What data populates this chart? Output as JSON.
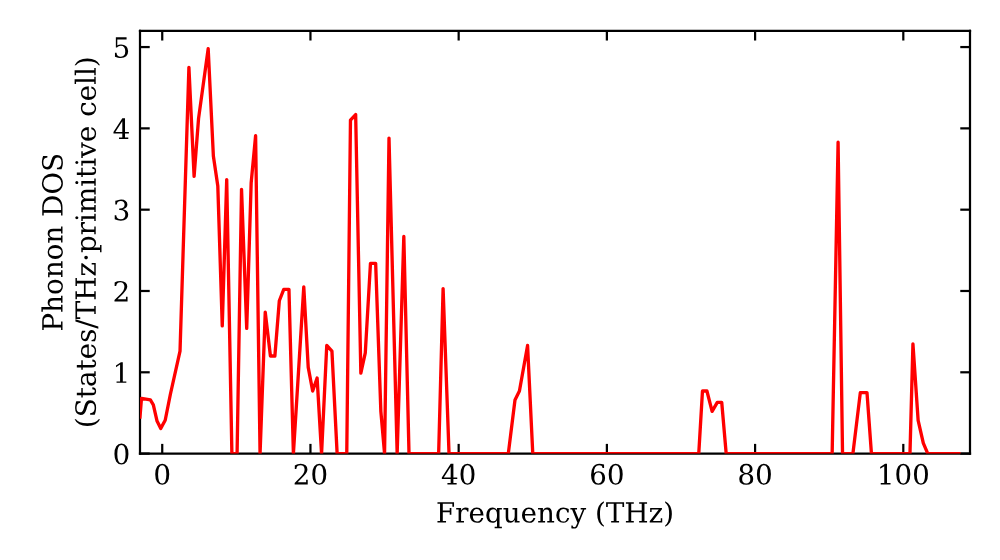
{
  "chart_data": {
    "type": "line",
    "xlabel": "Frequency (THz)",
    "ylabel": "Phonon DOS\n(States/THz·primitive cell)",
    "xlim": [
      -3,
      109
    ],
    "ylim": [
      0,
      5.2
    ],
    "xticks": [
      0,
      20,
      40,
      60,
      80,
      100
    ],
    "yticks": [
      0,
      1,
      2,
      3,
      4,
      5
    ],
    "grid": false,
    "legend": false,
    "marker": "none",
    "line_style": "solid",
    "series": [
      {
        "color": "#ff0000",
        "x": [
          -3,
          -2.8,
          -1.6,
          -1.2,
          -0.7,
          -0.2,
          0.4,
          1.1,
          2.4,
          3.6,
          4.3,
          4.9,
          6.2,
          6.9,
          7.5,
          8.1,
          8.7,
          9.4,
          10.1,
          10.7,
          11.4,
          12,
          12.6,
          13.2,
          13.9,
          14.6,
          15.2,
          15.8,
          16.4,
          17.1,
          17.7,
          19.1,
          19.7,
          20.3,
          20.9,
          21.5,
          22.2,
          22.9,
          23.6,
          24.9,
          25.4,
          26.1,
          26.8,
          27.4,
          28.1,
          28.8,
          29.5,
          30,
          30.6,
          31.7,
          32.6,
          33.3,
          37.3,
          37.9,
          38.7,
          46.7,
          47.6,
          48.2,
          49.3,
          50,
          72.4,
          72.9,
          73.5,
          74.2,
          74.9,
          75.5,
          76.1,
          90.4,
          91.2,
          91.8,
          93.2,
          94.2,
          95.1,
          95.7,
          100.9,
          101.3,
          102,
          102.7,
          103.3,
          107.5
        ],
        "values": [
          0.45,
          0.68,
          0.66,
          0.6,
          0.4,
          0.31,
          0.41,
          0.73,
          1.26,
          4.75,
          3.41,
          4.12,
          4.98,
          3.66,
          3.29,
          1.57,
          3.37,
          0,
          0,
          3.25,
          1.54,
          3.33,
          3.91,
          0,
          1.74,
          1.2,
          1.2,
          1.88,
          2.02,
          2.02,
          0,
          2.05,
          1.06,
          0.77,
          0.93,
          0,
          1.33,
          1.26,
          0,
          0,
          4.1,
          4.17,
          0.99,
          1.24,
          2.34,
          2.34,
          0.52,
          0,
          3.88,
          0,
          2.67,
          0,
          0,
          2.03,
          0,
          0,
          0.66,
          0.77,
          1.33,
          0,
          0,
          0.77,
          0.77,
          0.52,
          0.63,
          0.63,
          0,
          0,
          3.83,
          0,
          0,
          0.75,
          0.75,
          0,
          0,
          1.35,
          0.41,
          0.13,
          0,
          0
        ]
      }
    ]
  }
}
